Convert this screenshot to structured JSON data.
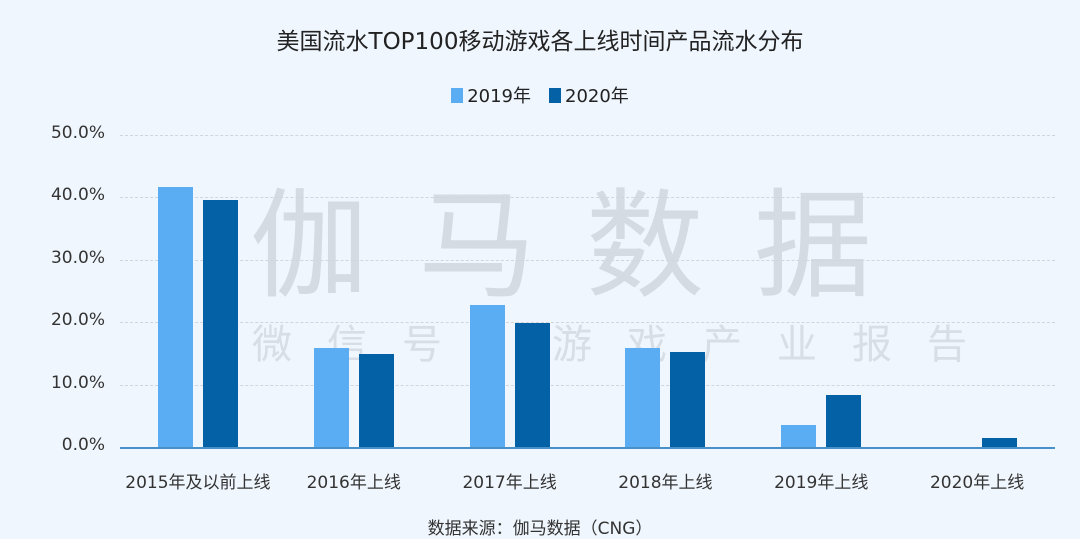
{
  "chart_data": {
    "type": "bar",
    "title": "美国流水TOP100移动游戏各上线时间产品流水分布",
    "categories": [
      "2015年及以前上线",
      "2016年上线",
      "2017年上线",
      "2018年上线",
      "2019年上线",
      "2020年上线"
    ],
    "series": [
      {
        "name": "2019年",
        "color": "#5aadf3",
        "values": [
          41.7,
          15.9,
          22.8,
          15.9,
          3.5,
          0
        ]
      },
      {
        "name": "2020年",
        "color": "#0561a6",
        "values": [
          39.6,
          14.9,
          19.9,
          15.2,
          8.3,
          1.5
        ]
      }
    ],
    "xlabel": "",
    "ylabel": "",
    "ylim": [
      0,
      50
    ],
    "yticks": [
      "0.0%",
      "10.0%",
      "20.0%",
      "30.0%",
      "40.0%",
      "50.0%"
    ],
    "grid": true,
    "legend_position": "top"
  },
  "watermark": {
    "main": "伽马数据",
    "sub": "微信号：游戏产业报告"
  },
  "source": "数据来源：伽马数据（CNG）"
}
